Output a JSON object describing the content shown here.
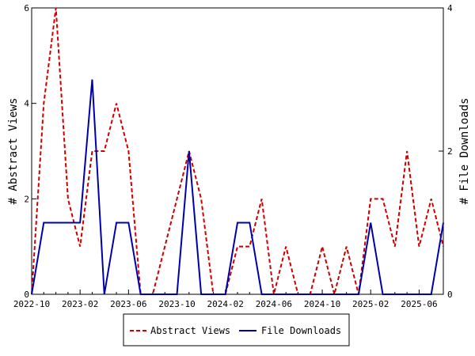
{
  "chart_data": {
    "type": "line",
    "x": [
      "2022-10",
      "2022-11",
      "2022-12",
      "2023-01",
      "2023-02",
      "2023-03",
      "2023-04",
      "2023-05",
      "2023-06",
      "2023-07",
      "2023-08",
      "2023-09",
      "2023-10",
      "2023-11",
      "2023-12",
      "2024-01",
      "2024-02",
      "2024-03",
      "2024-04",
      "2024-05",
      "2024-06",
      "2024-07",
      "2024-08",
      "2024-09",
      "2024-10",
      "2024-11",
      "2024-12",
      "2025-01",
      "2025-02",
      "2025-03",
      "2025-04",
      "2025-05",
      "2025-06",
      "2025-07",
      "2025-08"
    ],
    "x_tick_labels": [
      "2022-10",
      "2023-02",
      "2023-06",
      "2023-10",
      "2024-02",
      "2024-06",
      "2024-10",
      "2025-02",
      "2025-06"
    ],
    "series": [
      {
        "name": "Abstract Views",
        "axis": "left",
        "color": "#cc0000",
        "style": "dashed",
        "values": [
          0,
          4,
          6,
          2,
          1,
          3,
          3,
          4,
          3,
          0,
          0,
          1,
          2,
          3,
          2,
          0,
          0,
          1,
          1,
          2,
          0,
          1,
          0,
          0,
          1,
          0,
          1,
          0,
          2,
          2,
          1,
          3,
          1,
          2,
          1
        ]
      },
      {
        "name": "File Downloads",
        "axis": "right",
        "color": "#0000aa",
        "style": "solid",
        "values": [
          0,
          1,
          1,
          1,
          1,
          3,
          0,
          1,
          1,
          0,
          0,
          0,
          0,
          2,
          0,
          0,
          0,
          1,
          1,
          0,
          0,
          0,
          0,
          0,
          0,
          0,
          0,
          0,
          1,
          0,
          0,
          0,
          0,
          0,
          1
        ]
      }
    ],
    "ylabel": "# Abstract Views",
    "ylabel_right": "# File Downloads",
    "ylim": [
      0,
      6
    ],
    "ylim_right": [
      0,
      4
    ],
    "yticks": [
      0,
      2,
      4,
      6
    ],
    "yticks_right": [
      0,
      2,
      4
    ],
    "grid": false,
    "legend_position": "bottom-center"
  }
}
